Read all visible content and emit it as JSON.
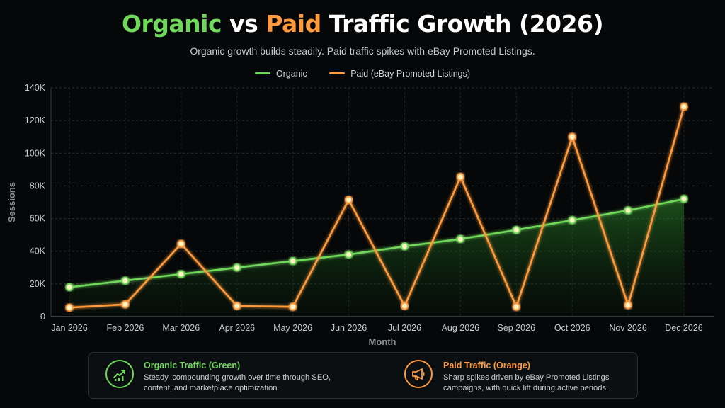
{
  "title": {
    "part1": "Organic",
    "part2": "vs",
    "part3": "Paid",
    "part4": "Traffic Growth (2026)"
  },
  "subtitle": "Organic growth builds steadily. Paid traffic spikes with eBay Promoted Listings.",
  "colors": {
    "organic": "#6fd85a",
    "paid": "#ff9a3d",
    "background": "#050708"
  },
  "chart_data": {
    "type": "line",
    "title": "Organic vs Paid Traffic Growth (2026)",
    "subtitle": "Organic growth builds steadily. Paid traffic spikes with eBay Promoted Listings.",
    "xlabel": "Month",
    "ylabel": "Sessions",
    "ylim": [
      0,
      140000
    ],
    "yticks": [
      0,
      20000,
      40000,
      60000,
      80000,
      100000,
      120000,
      140000
    ],
    "ytick_labels": [
      "0",
      "20K",
      "40K",
      "60K",
      "80K",
      "100K",
      "120K",
      "140K"
    ],
    "grid": true,
    "legend_position": "top-center",
    "categories": [
      "Jan 2026",
      "Feb 2026",
      "Mar 2026",
      "Apr 2026",
      "May 2026",
      "Jun 2026",
      "Jul 2026",
      "Aug 2026",
      "Sep 2026",
      "Oct 2026",
      "Nov 2026",
      "Dec 2026"
    ],
    "series": [
      {
        "name": "Organic",
        "color": "#6fd85a",
        "area_fill": true,
        "values": [
          18000,
          22000,
          26000,
          30000,
          34000,
          38000,
          43000,
          47500,
          53000,
          59000,
          65000,
          72000
        ]
      },
      {
        "name": "Paid (eBay Promoted Listings)",
        "color": "#ff9a3d",
        "values": [
          5500,
          7500,
          44500,
          6500,
          6000,
          71500,
          6500,
          85500,
          6000,
          110000,
          7000,
          128500
        ]
      }
    ]
  },
  "annotations": [
    {
      "title": "Organic Traffic (Green)",
      "text": "Steady, compounding growth over time through SEO, content, and marketplace optimization.",
      "icon": "growth-chart-icon",
      "color": "#6fd85a"
    },
    {
      "title": "Paid Traffic (Orange)",
      "text": "Sharp spikes driven by eBay Promoted Listings campaigns, with quick lift during active periods.",
      "icon": "megaphone-icon",
      "color": "#ff9a3d"
    }
  ]
}
